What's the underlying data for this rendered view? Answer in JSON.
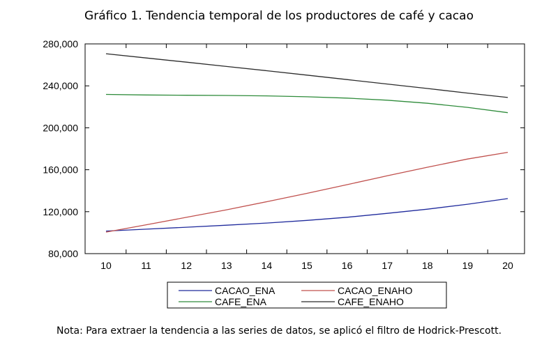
{
  "chart_data": {
    "type": "line",
    "title": "Gráfico 1. Tendencia temporal de los productores de café y cacao",
    "note": "Nota: Para extraer la tendencia a las series de datos, se aplicó el filtro de Hodrick-Prescott.",
    "xlabel": "",
    "ylabel": "",
    "x": [
      10,
      11,
      12,
      13,
      14,
      15,
      16,
      17,
      18,
      19,
      20
    ],
    "xlim": [
      10,
      20
    ],
    "ylim": [
      80000,
      280000
    ],
    "yticks": [
      80000,
      120000,
      160000,
      200000,
      240000,
      280000
    ],
    "ytick_labels": [
      "80,000",
      "120,000",
      "160,000",
      "200,000",
      "240,000",
      "280,000"
    ],
    "xtick_labels": [
      "10",
      "11",
      "12",
      "13",
      "14",
      "15",
      "16",
      "17",
      "18",
      "19",
      "20"
    ],
    "grid": false,
    "legend_position": "bottom",
    "series": [
      {
        "name": "CACAO_ENA",
        "color": "#1f2a9c",
        "values": [
          101500,
          103300,
          105200,
          107100,
          109200,
          111700,
          114700,
          118400,
          122400,
          127100,
          132500
        ]
      },
      {
        "name": "CACAO_ENAHO",
        "color": "#c0504d",
        "values": [
          100500,
          107500,
          114600,
          121800,
          129500,
          137500,
          145800,
          154200,
          162400,
          170200,
          176600
        ]
      },
      {
        "name": "CAFE_ENA",
        "color": "#2e8b3a",
        "values": [
          231800,
          231300,
          231000,
          230800,
          230400,
          229600,
          228300,
          226300,
          223400,
          219500,
          214400
        ]
      },
      {
        "name": "CAFE_ENAHO",
        "color": "#2b2b2b",
        "values": [
          270600,
          266600,
          262600,
          258500,
          254400,
          250200,
          246000,
          241700,
          237500,
          233100,
          228900
        ]
      }
    ]
  }
}
